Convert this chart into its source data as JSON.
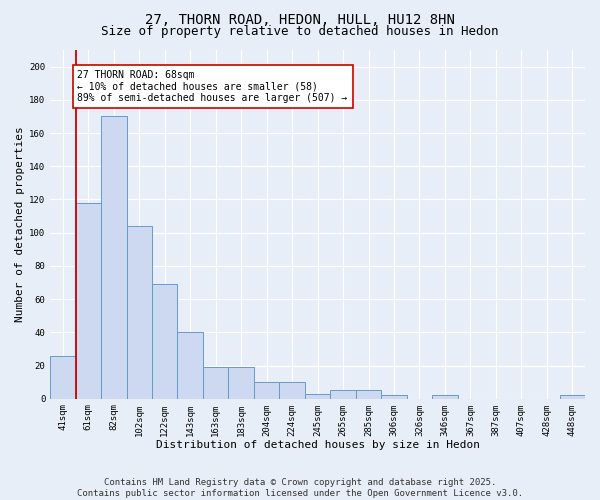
{
  "title": "27, THORN ROAD, HEDON, HULL, HU12 8HN",
  "subtitle": "Size of property relative to detached houses in Hedon",
  "xlabel": "Distribution of detached houses by size in Hedon",
  "ylabel": "Number of detached properties",
  "bar_labels": [
    "41sqm",
    "61sqm",
    "82sqm",
    "102sqm",
    "122sqm",
    "143sqm",
    "163sqm",
    "183sqm",
    "204sqm",
    "224sqm",
    "245sqm",
    "265sqm",
    "285sqm",
    "306sqm",
    "326sqm",
    "346sqm",
    "367sqm",
    "387sqm",
    "407sqm",
    "428sqm",
    "448sqm"
  ],
  "bar_values": [
    26,
    118,
    170,
    104,
    69,
    40,
    19,
    19,
    10,
    10,
    3,
    5,
    5,
    2,
    0,
    2,
    0,
    0,
    0,
    0,
    2
  ],
  "bar_color": "#ccd9f0",
  "bar_edge_color": "#6699cc",
  "vline_x": 0.5,
  "vline_color": "#cc0000",
  "annotation_text": "27 THORN ROAD: 68sqm\n← 10% of detached houses are smaller (58)\n89% of semi-detached houses are larger (507) →",
  "annotation_box_color": "#ffffff",
  "annotation_box_edge": "#cc0000",
  "ylim": [
    0,
    210
  ],
  "yticks": [
    0,
    20,
    40,
    60,
    80,
    100,
    120,
    140,
    160,
    180,
    200
  ],
  "footer_text": "Contains HM Land Registry data © Crown copyright and database right 2025.\nContains public sector information licensed under the Open Government Licence v3.0.",
  "plot_bg_color": "#e8eef8",
  "fig_bg_color": "#e8eef8",
  "grid_color": "#ffffff",
  "title_fontsize": 10,
  "subtitle_fontsize": 9,
  "axis_label_fontsize": 8,
  "tick_fontsize": 6.5,
  "annotation_fontsize": 7,
  "footer_fontsize": 6.5
}
